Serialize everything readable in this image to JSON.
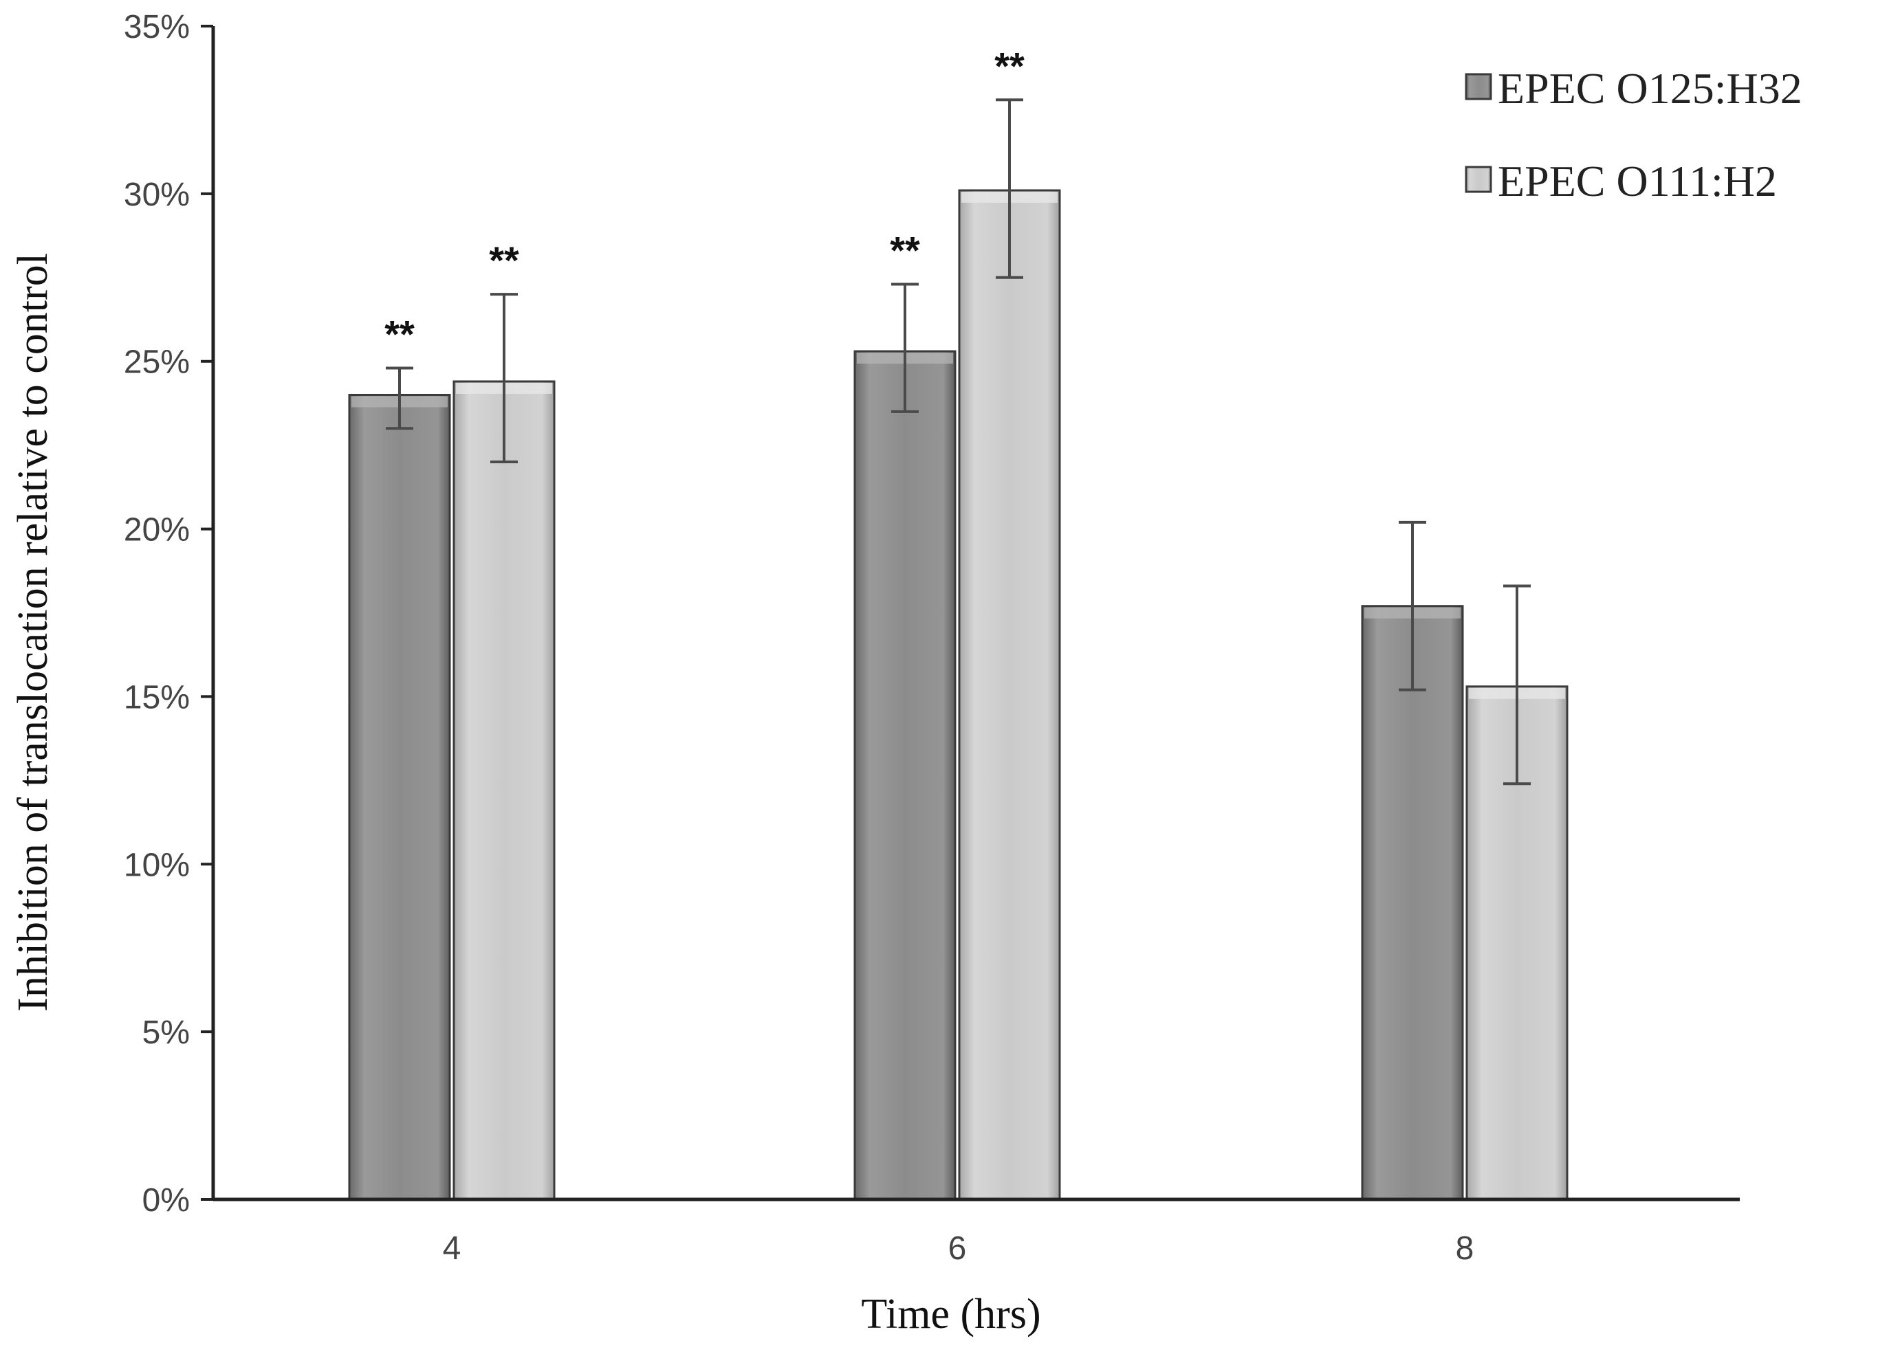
{
  "chart_data": {
    "type": "bar",
    "xlabel": "Time (hrs)",
    "ylabel": "Inhibition of translocation relative to control",
    "categories": [
      "4",
      "6",
      "8"
    ],
    "ylim": [
      0,
      35
    ],
    "ytick_step": 5,
    "ytick_suffix": "%",
    "grid": false,
    "legend_position": "top-right",
    "series": [
      {
        "name": "EPEC O125:H32",
        "color": "#8e8e8e",
        "values": [
          24.0,
          25.3,
          17.7
        ],
        "error_low": [
          23.0,
          23.5,
          15.2
        ],
        "error_high": [
          24.8,
          27.3,
          20.2
        ],
        "annotations": [
          "**",
          "**",
          ""
        ]
      },
      {
        "name": "EPEC O111:H2",
        "color": "#c8c8c8",
        "values": [
          24.4,
          30.1,
          15.3
        ],
        "error_low": [
          22.0,
          27.5,
          12.4
        ],
        "error_high": [
          27.0,
          32.8,
          18.3
        ],
        "annotations": [
          "**",
          "**",
          ""
        ]
      }
    ]
  }
}
